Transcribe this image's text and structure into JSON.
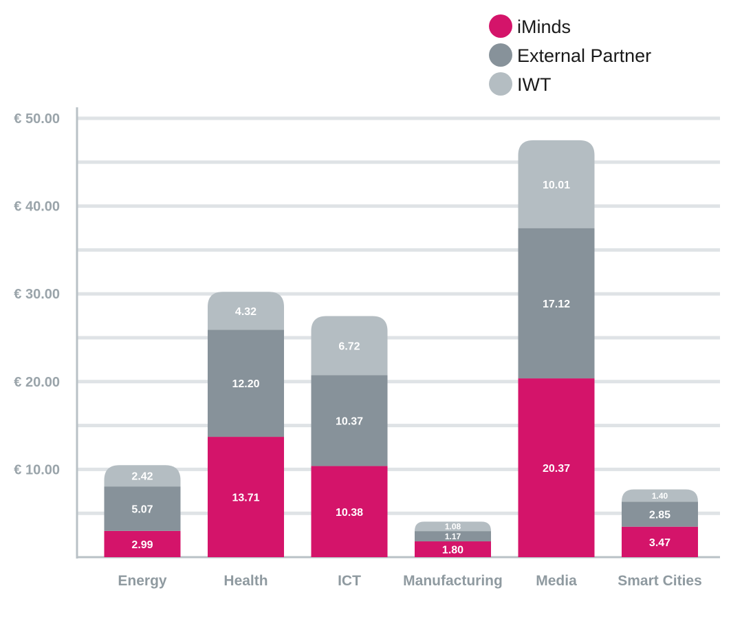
{
  "chart_data": {
    "type": "bar",
    "stacked": true,
    "categories": [
      "Energy",
      "Health",
      "ICT",
      "Manufacturing",
      "Media",
      "Smart Cities"
    ],
    "series": [
      {
        "name": "iMinds",
        "color": "#d4146a",
        "values": [
          2.99,
          13.71,
          10.38,
          1.8,
          20.37,
          3.47
        ],
        "labels": [
          "2.99",
          "13.71",
          "10.38",
          "1.80",
          "20.37",
          "3.47"
        ]
      },
      {
        "name": "External Partner",
        "color": "#87929a",
        "values": [
          5.07,
          12.2,
          10.37,
          1.17,
          17.12,
          2.85
        ],
        "labels": [
          "5.07",
          "12.20",
          "10.37",
          "1.17",
          "17.12",
          "2.85"
        ]
      },
      {
        "name": "IWT",
        "color": "#b4bdc2",
        "values": [
          2.42,
          4.32,
          6.72,
          1.08,
          10.01,
          1.4
        ],
        "labels": [
          "2.42",
          "4.32",
          "6.72",
          "1.08",
          "10.01",
          "1.40"
        ]
      }
    ],
    "ylim": [
      0,
      50
    ],
    "yticks": [
      10,
      20,
      30,
      40,
      50
    ],
    "ytick_labels": [
      "€ 10.00",
      "€ 20.00",
      "€ 30.00",
      "€ 40.00",
      "€ 50.00"
    ],
    "grid": true,
    "grid_step": 5,
    "legend_position": "top-right"
  }
}
